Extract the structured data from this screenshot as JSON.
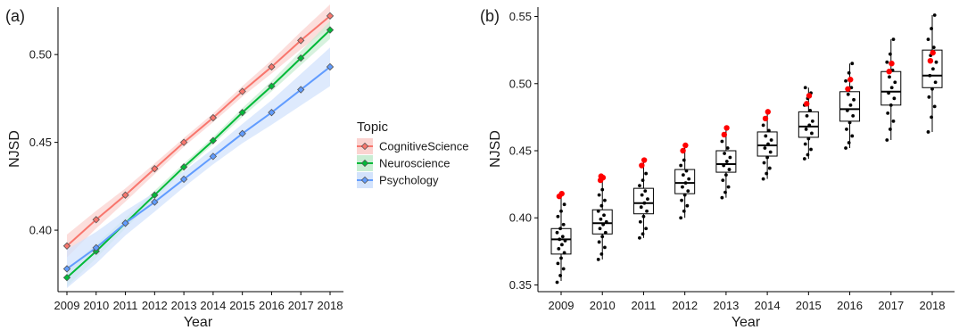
{
  "figure": {
    "panel_a_tag": "(a)",
    "panel_b_tag": "(b)"
  },
  "chart_data": [
    {
      "type": "line",
      "panel": "(a)",
      "xlabel": "Year",
      "ylabel": "NJSD",
      "x": [
        2009,
        2010,
        2011,
        2012,
        2013,
        2014,
        2015,
        2016,
        2017,
        2018
      ],
      "xlim": [
        2009,
        2018
      ],
      "ylim": [
        0.365,
        0.527
      ],
      "yticks": [
        0.4,
        0.45,
        0.5
      ],
      "ytick_labels": [
        "0.40",
        "0.45",
        "0.50"
      ],
      "legend_title": "Topic",
      "legend_position": "right",
      "confidence_bands": true,
      "grid": false,
      "series": [
        {
          "name": "CognitiveScience",
          "color": "#f8766d",
          "band_color": "#fbd3d0",
          "values": [
            0.391,
            0.406,
            0.42,
            0.435,
            0.45,
            0.464,
            0.479,
            0.493,
            0.508,
            0.522
          ],
          "band_halfwidth": [
            0.0065,
            0.005,
            0.0038,
            0.003,
            0.0025,
            0.0025,
            0.003,
            0.0038,
            0.005,
            0.0065
          ]
        },
        {
          "name": "Neuroscience",
          "color": "#00ba38",
          "band_color": "#c9edd3",
          "values": [
            0.373,
            0.388,
            0.404,
            0.42,
            0.436,
            0.451,
            0.467,
            0.482,
            0.498,
            0.514
          ],
          "band_halfwidth": [
            0.005,
            0.004,
            0.003,
            0.0025,
            0.002,
            0.002,
            0.0025,
            0.003,
            0.004,
            0.005
          ]
        },
        {
          "name": "Psychology",
          "color": "#619cff",
          "band_color": "#d3e3fc",
          "values": [
            0.378,
            0.39,
            0.404,
            0.416,
            0.429,
            0.442,
            0.455,
            0.467,
            0.48,
            0.493
          ],
          "band_halfwidth": [
            0.011,
            0.009,
            0.007,
            0.0055,
            0.0045,
            0.0045,
            0.0055,
            0.007,
            0.009,
            0.011
          ]
        }
      ]
    },
    {
      "type": "boxplot",
      "panel": "(b)",
      "xlabel": "Year",
      "ylabel": "NJSD",
      "categories": [
        "2009",
        "2010",
        "2011",
        "2012",
        "2013",
        "2014",
        "2015",
        "2016",
        "2017",
        "2018"
      ],
      "ylim": [
        0.345,
        0.557
      ],
      "yticks": [
        0.35,
        0.4,
        0.45,
        0.5,
        0.55
      ],
      "ytick_labels": [
        "0.35",
        "0.40",
        "0.45",
        "0.50",
        "0.55"
      ],
      "grid": false,
      "box_color": "#000000",
      "point_color": "#000000",
      "highlight_color": "#ff0000",
      "boxes": [
        {
          "q1": 0.373,
          "median": 0.384,
          "q3": 0.392,
          "whisker_low": 0.353,
          "whisker_high": 0.418,
          "points": [
            0.352,
            0.357,
            0.362,
            0.366,
            0.37,
            0.374,
            0.377,
            0.38,
            0.383,
            0.384,
            0.386,
            0.389,
            0.392,
            0.395,
            0.401,
            0.405,
            0.41
          ],
          "highlight": [
            0.416,
            0.418
          ]
        },
        {
          "q1": 0.388,
          "median": 0.396,
          "q3": 0.406,
          "whisker_low": 0.369,
          "whisker_high": 0.431,
          "points": [
            0.369,
            0.373,
            0.378,
            0.382,
            0.386,
            0.389,
            0.392,
            0.395,
            0.397,
            0.399,
            0.402,
            0.405,
            0.409,
            0.413,
            0.417,
            0.421
          ],
          "highlight": [
            0.428,
            0.43,
            0.431
          ]
        },
        {
          "q1": 0.403,
          "median": 0.411,
          "q3": 0.422,
          "whisker_low": 0.385,
          "whisker_high": 0.443,
          "points": [
            0.385,
            0.388,
            0.392,
            0.397,
            0.401,
            0.405,
            0.408,
            0.411,
            0.414,
            0.417,
            0.42,
            0.424,
            0.428,
            0.433
          ],
          "highlight": [
            0.439,
            0.443
          ]
        },
        {
          "q1": 0.418,
          "median": 0.426,
          "q3": 0.436,
          "whisker_low": 0.4,
          "whisker_high": 0.455,
          "points": [
            0.4,
            0.405,
            0.409,
            0.413,
            0.417,
            0.42,
            0.423,
            0.426,
            0.429,
            0.432,
            0.435,
            0.439,
            0.443
          ],
          "highlight": [
            0.45,
            0.454
          ]
        },
        {
          "q1": 0.434,
          "median": 0.44,
          "q3": 0.45,
          "whisker_low": 0.415,
          "whisker_high": 0.467,
          "points": [
            0.415,
            0.419,
            0.423,
            0.428,
            0.432,
            0.436,
            0.439,
            0.442,
            0.445,
            0.448,
            0.452,
            0.457
          ],
          "highlight": [
            0.462,
            0.467
          ]
        },
        {
          "q1": 0.446,
          "median": 0.454,
          "q3": 0.464,
          "whisker_low": 0.429,
          "whisker_high": 0.479,
          "points": [
            0.429,
            0.433,
            0.437,
            0.441,
            0.445,
            0.449,
            0.452,
            0.455,
            0.458,
            0.461,
            0.465,
            0.469
          ],
          "highlight": [
            0.474,
            0.479
          ]
        },
        {
          "q1": 0.46,
          "median": 0.468,
          "q3": 0.479,
          "whisker_low": 0.444,
          "whisker_high": 0.497,
          "points": [
            0.444,
            0.447,
            0.451,
            0.455,
            0.459,
            0.463,
            0.466,
            0.469,
            0.472,
            0.476,
            0.48,
            0.484,
            0.489,
            0.493,
            0.497
          ],
          "highlight": [
            0.485,
            0.491
          ]
        },
        {
          "q1": 0.472,
          "median": 0.481,
          "q3": 0.494,
          "whisker_low": 0.452,
          "whisker_high": 0.515,
          "points": [
            0.452,
            0.456,
            0.461,
            0.466,
            0.471,
            0.476,
            0.48,
            0.484,
            0.488,
            0.492,
            0.497,
            0.502,
            0.508,
            0.515
          ],
          "highlight": [
            0.496,
            0.503
          ]
        },
        {
          "q1": 0.484,
          "median": 0.494,
          "q3": 0.509,
          "whisker_low": 0.458,
          "whisker_high": 0.533,
          "points": [
            0.458,
            0.466,
            0.472,
            0.478,
            0.484,
            0.489,
            0.493,
            0.497,
            0.501,
            0.505,
            0.51,
            0.516,
            0.522,
            0.533
          ],
          "highlight": [
            0.509,
            0.515
          ]
        },
        {
          "q1": 0.497,
          "median": 0.506,
          "q3": 0.525,
          "whisker_low": 0.464,
          "whisker_high": 0.551,
          "points": [
            0.464,
            0.475,
            0.483,
            0.49,
            0.496,
            0.501,
            0.506,
            0.511,
            0.516,
            0.521,
            0.527,
            0.533,
            0.541,
            0.551
          ],
          "highlight": [
            0.517,
            0.523
          ]
        }
      ]
    }
  ]
}
